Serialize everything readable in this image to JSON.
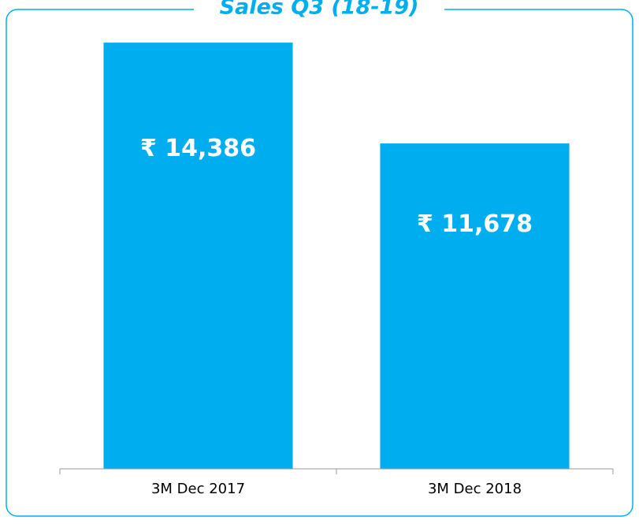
{
  "chart_data": {
    "type": "bar",
    "title": "Sales Q3 (18-19)",
    "categories": [
      "3M Dec 2017",
      "3M Dec 2018"
    ],
    "values": [
      14386,
      11678
    ],
    "value_labels": [
      "₹ 14,386",
      "₹ 11,678"
    ],
    "color": "#00aeef",
    "ylim": [
      2940,
      14600
    ]
  }
}
